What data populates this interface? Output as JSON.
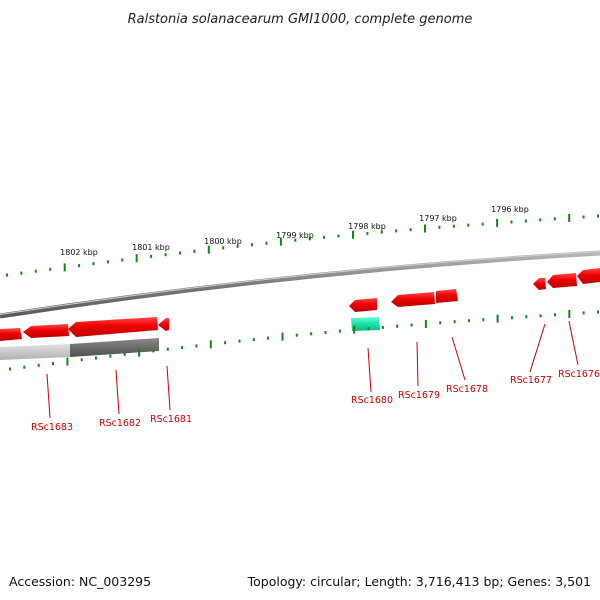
{
  "title": "Ralstonia solanacearum GMI1000, complete genome",
  "footer": {
    "accession": "Accession: NC_003295",
    "summary": "Topology: circular; Length: 3,716,413 bp; Genes: 3,501"
  },
  "ruler": {
    "labels": [
      "1802 kbp",
      "1801 kbp",
      "1800 kbp",
      "1799 kbp",
      "1798 kbp",
      "1797 kbp",
      "1796 kbp"
    ]
  },
  "genes": [
    {
      "label": "RSc1683"
    },
    {
      "label": "RSc1682"
    },
    {
      "label": "RSc1681"
    },
    {
      "label": "RSc1680"
    },
    {
      "label": "RSc1679"
    },
    {
      "label": "RSc1678"
    },
    {
      "label": "RSc1677"
    },
    {
      "label": "RSc1676"
    }
  ],
  "colors": {
    "gene": "#ee0000",
    "rna": "#19d9a0",
    "tick": "#118811",
    "backbone": "#8a8a8a",
    "label": "#cc0000"
  }
}
